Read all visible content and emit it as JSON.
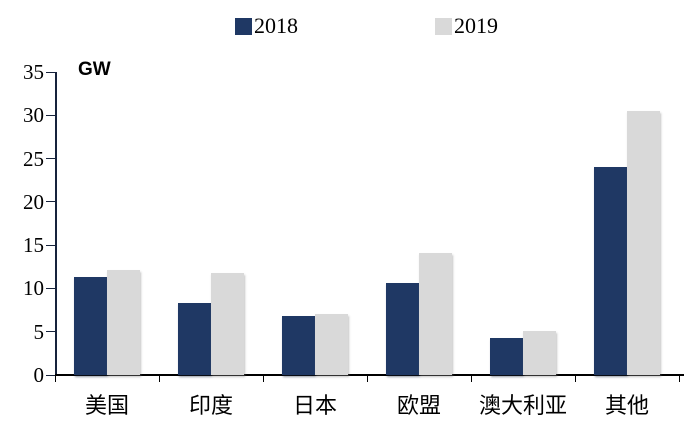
{
  "chart_data": {
    "type": "bar",
    "title": "",
    "unit_label": "GW",
    "categories": [
      "美国",
      "印度",
      "日本",
      "欧盟",
      "澳大利亚",
      "其他"
    ],
    "series": [
      {
        "name": "2018",
        "color": "#1f3864",
        "values": [
          11.3,
          8.3,
          6.8,
          10.6,
          4.3,
          24.0
        ]
      },
      {
        "name": "2019",
        "color": "#d9d9d9",
        "values": [
          12.1,
          11.8,
          7.1,
          14.1,
          5.1,
          30.5
        ]
      }
    ],
    "ylim": [
      0,
      35
    ],
    "ytick_step": 5,
    "yticks": [
      0,
      5,
      10,
      15,
      20,
      25,
      30,
      35
    ],
    "grid": false,
    "legend_position": "top",
    "axis_colors": {
      "y_axis": "#17233c",
      "x_axis": "#000000"
    }
  }
}
